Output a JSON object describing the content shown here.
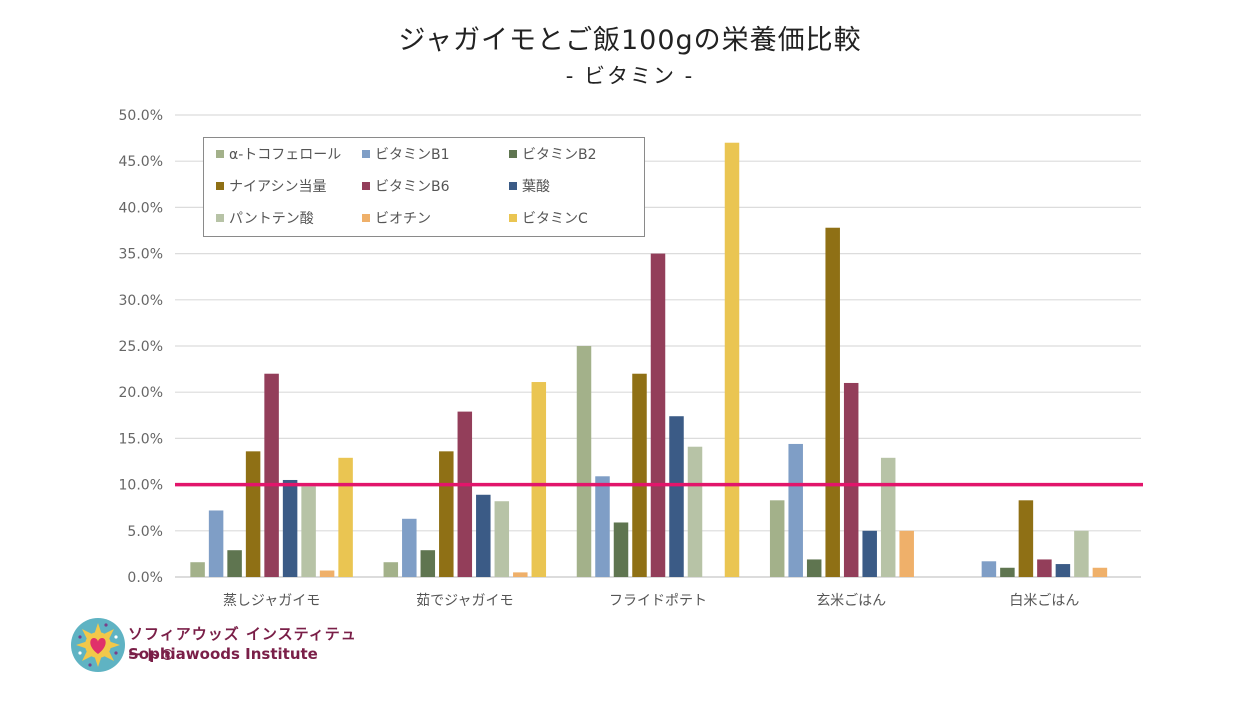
{
  "chart_data": {
    "type": "bar",
    "title": "ジャガイモとご飯100gの栄養価比較",
    "subtitle": "- ビタミン -",
    "xlabel": "",
    "ylabel": "",
    "ylim": [
      0,
      0.5
    ],
    "yticks": [
      "0.0%",
      "5.0%",
      "10.0%",
      "15.0%",
      "20.0%",
      "25.0%",
      "30.0%",
      "35.0%",
      "40.0%",
      "45.0%",
      "50.0%"
    ],
    "grid": true,
    "legend_position": "top-left",
    "categories": [
      "蒸しジャガイモ",
      "茹でジャガイモ",
      "フライドポテト",
      "玄米ごはん",
      "白米ごはん"
    ],
    "series": [
      {
        "name": "α-トコフェロール",
        "color": "#a3b18a",
        "values": [
          0.016,
          0.016,
          0.25,
          0.083,
          0.0
        ]
      },
      {
        "name": "ビタミンB1",
        "color": "#7f9ec6",
        "values": [
          0.072,
          0.063,
          0.109,
          0.144,
          0.017
        ]
      },
      {
        "name": "ビタミンB2",
        "color": "#5f7550",
        "values": [
          0.029,
          0.029,
          0.059,
          0.019,
          0.01
        ]
      },
      {
        "name": "ナイアシン当量",
        "color": "#8f7015",
        "values": [
          0.136,
          0.136,
          0.22,
          0.378,
          0.083
        ]
      },
      {
        "name": "ビタミンB6",
        "color": "#933e5a",
        "values": [
          0.22,
          0.179,
          0.35,
          0.21,
          0.019
        ]
      },
      {
        "name": "葉酸",
        "color": "#3b5b86",
        "values": [
          0.105,
          0.089,
          0.174,
          0.05,
          0.014
        ]
      },
      {
        "name": "パントテン酸",
        "color": "#b7c3a6",
        "values": [
          0.098,
          0.082,
          0.141,
          0.129,
          0.05
        ]
      },
      {
        "name": "ビオチン",
        "color": "#efb06a",
        "values": [
          0.007,
          0.005,
          0.0,
          0.05,
          0.01
        ]
      },
      {
        "name": "ビタミンC",
        "color": "#eac552",
        "values": [
          0.129,
          0.211,
          0.47,
          0.0,
          0.0
        ]
      }
    ],
    "reference_line": {
      "value": 0.1,
      "color": "#e2156b"
    },
    "legend_label_display": [
      "α-トコフェロール",
      "ビタミンB1",
      "ビタミンB2",
      "ナイアシン当量",
      "ビタミンB6",
      "葉酸",
      "パントテン酸",
      "ビオチン",
      "ビタミンC"
    ]
  },
  "logo": {
    "name_jp": "ソフィアウッズ インスティテュート®",
    "name_en": "Sophiawoods Institute"
  }
}
